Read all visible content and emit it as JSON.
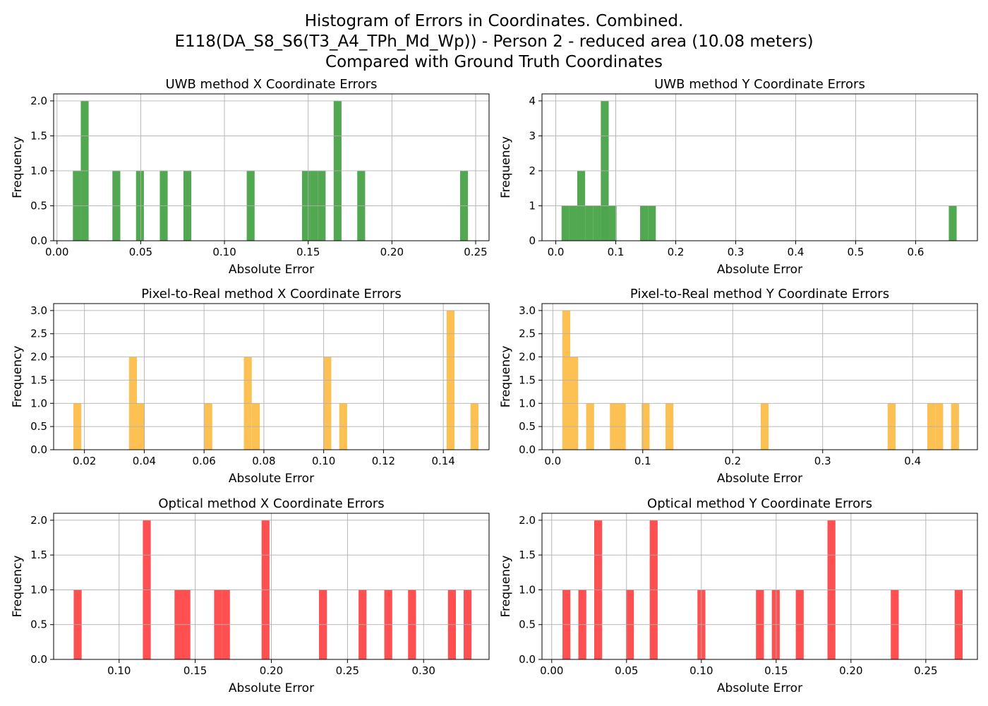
{
  "title_lines": [
    "Histogram of Errors in Coordinates. Combined.",
    "E118(DA_S8_S6(T3_A4_TPh_Md_Wp)) - Person 2 - reduced area (10.08 meters)",
    "Compared with Ground Truth Coordinates"
  ],
  "colors": {
    "uwb": "#4ea64e",
    "pixel": "#fdbf4f",
    "optical": "#fe4c4c"
  },
  "chart_data": [
    {
      "type": "bar",
      "title": "UWB method X Coordinate Errors",
      "xlabel": "Absolute Error",
      "ylabel": "Frequency",
      "color": "uwb",
      "xlim": [
        -0.002,
        0.258
      ],
      "ylim": [
        0,
        2.1
      ],
      "xticks": [
        0.0,
        0.05,
        0.1,
        0.15,
        0.2,
        0.25
      ],
      "xtick_labels": [
        "0.00",
        "0.05",
        "0.10",
        "0.15",
        "0.20",
        "0.25"
      ],
      "yticks": [
        0.0,
        0.5,
        1.0,
        1.5,
        2.0
      ],
      "ytick_labels": [
        "0.0",
        "0.5",
        "1.0",
        "1.5",
        "2.0"
      ],
      "bin_width": 0.0047,
      "bins": [
        {
          "x": 0.0095,
          "count": 1
        },
        {
          "x": 0.0142,
          "count": 2
        },
        {
          "x": 0.0331,
          "count": 1
        },
        {
          "x": 0.0472,
          "count": 1
        },
        {
          "x": 0.0614,
          "count": 1
        },
        {
          "x": 0.0755,
          "count": 1
        },
        {
          "x": 0.1133,
          "count": 1
        },
        {
          "x": 0.1463,
          "count": 1
        },
        {
          "x": 0.151,
          "count": 1
        },
        {
          "x": 0.1557,
          "count": 1
        },
        {
          "x": 0.1652,
          "count": 2
        },
        {
          "x": 0.1793,
          "count": 1
        },
        {
          "x": 0.2407,
          "count": 1
        }
      ]
    },
    {
      "type": "bar",
      "title": "UWB method Y Coordinate Errors",
      "xlabel": "Absolute Error",
      "ylabel": "Frequency",
      "color": "uwb",
      "xlim": [
        -0.023,
        0.703
      ],
      "ylim": [
        0,
        4.2
      ],
      "xticks": [
        0.0,
        0.1,
        0.2,
        0.3,
        0.4,
        0.5,
        0.6
      ],
      "xtick_labels": [
        "0.0",
        "0.1",
        "0.2",
        "0.3",
        "0.4",
        "0.5",
        "0.6"
      ],
      "yticks": [
        0,
        1,
        2,
        3,
        4
      ],
      "ytick_labels": [
        "0",
        "1",
        "2",
        "3",
        "4"
      ],
      "bin_width": 0.0131,
      "bins": [
        {
          "x": 0.0096,
          "count": 1
        },
        {
          "x": 0.0227,
          "count": 1
        },
        {
          "x": 0.0358,
          "count": 2
        },
        {
          "x": 0.0489,
          "count": 1
        },
        {
          "x": 0.062,
          "count": 1
        },
        {
          "x": 0.0751,
          "count": 1
        },
        {
          "x": 0.0751,
          "count": 4
        },
        {
          "x": 0.0882,
          "count": 1
        },
        {
          "x": 0.1406,
          "count": 1
        },
        {
          "x": 0.1537,
          "count": 1
        },
        {
          "x": 0.6553,
          "count": 1
        }
      ]
    },
    {
      "type": "bar",
      "title": "Pixel-to-Real method X Coordinate Errors",
      "xlabel": "Absolute Error",
      "ylabel": "Frequency",
      "color": "pixel",
      "xlim": [
        0.0097,
        0.1553
      ],
      "ylim": [
        0,
        3.15
      ],
      "xticks": [
        0.02,
        0.04,
        0.06,
        0.08,
        0.1,
        0.12,
        0.14
      ],
      "xtick_labels": [
        "0.02",
        "0.04",
        "0.06",
        "0.08",
        "0.10",
        "0.12",
        "0.14"
      ],
      "yticks": [
        0.0,
        0.5,
        1.0,
        1.5,
        2.0,
        2.5,
        3.0
      ],
      "ytick_labels": [
        "0.0",
        "0.5",
        "1.0",
        "1.5",
        "2.0",
        "2.5",
        "3.0"
      ],
      "bin_width": 0.00265,
      "bins": [
        {
          "x": 0.0163,
          "count": 1
        },
        {
          "x": 0.0349,
          "count": 2
        },
        {
          "x": 0.0375,
          "count": 1
        },
        {
          "x": 0.0601,
          "count": 1
        },
        {
          "x": 0.0733,
          "count": 2
        },
        {
          "x": 0.076,
          "count": 1
        },
        {
          "x": 0.0999,
          "count": 2
        },
        {
          "x": 0.1052,
          "count": 1
        },
        {
          "x": 0.1411,
          "count": 3
        },
        {
          "x": 0.1491,
          "count": 1
        }
      ]
    },
    {
      "type": "bar",
      "title": "Pixel-to-Real method Y Coordinate Errors",
      "xlabel": "Absolute Error",
      "ylabel": "Frequency",
      "color": "pixel",
      "xlim": [
        -0.012,
        0.472
      ],
      "ylim": [
        0,
        3.15
      ],
      "xticks": [
        0.0,
        0.1,
        0.2,
        0.3,
        0.4
      ],
      "xtick_labels": [
        "0.0",
        "0.1",
        "0.2",
        "0.3",
        "0.4"
      ],
      "yticks": [
        0.0,
        0.5,
        1.0,
        1.5,
        2.0,
        2.5,
        3.0
      ],
      "ytick_labels": [
        "0.0",
        "0.5",
        "1.0",
        "1.5",
        "2.0",
        "2.5",
        "3.0"
      ],
      "bin_width": 0.0088,
      "bins": [
        {
          "x": 0.0106,
          "count": 3
        },
        {
          "x": 0.0194,
          "count": 2
        },
        {
          "x": 0.0371,
          "count": 1
        },
        {
          "x": 0.0635,
          "count": 1
        },
        {
          "x": 0.0723,
          "count": 1
        },
        {
          "x": 0.0988,
          "count": 1
        },
        {
          "x": 0.1253,
          "count": 1
        },
        {
          "x": 0.2311,
          "count": 1
        },
        {
          "x": 0.3722,
          "count": 1
        },
        {
          "x": 0.4163,
          "count": 1
        },
        {
          "x": 0.4251,
          "count": 1
        },
        {
          "x": 0.4427,
          "count": 1
        }
      ]
    },
    {
      "type": "bar",
      "title": "Optical method X Coordinate Errors",
      "xlabel": "Absolute Error",
      "ylabel": "Frequency",
      "color": "optical",
      "xlim": [
        0.057,
        0.343
      ],
      "ylim": [
        0,
        2.1
      ],
      "xticks": [
        0.1,
        0.15,
        0.2,
        0.25,
        0.3
      ],
      "xtick_labels": [
        "0.10",
        "0.15",
        "0.20",
        "0.25",
        "0.30"
      ],
      "yticks": [
        0.0,
        0.5,
        1.0,
        1.5,
        2.0
      ],
      "ytick_labels": [
        "0.0",
        "0.5",
        "1.0",
        "1.5",
        "2.0"
      ],
      "bin_width": 0.0052,
      "bins": [
        {
          "x": 0.0702,
          "count": 1
        },
        {
          "x": 0.1156,
          "count": 2
        },
        {
          "x": 0.1364,
          "count": 1
        },
        {
          "x": 0.1416,
          "count": 1
        },
        {
          "x": 0.1624,
          "count": 1
        },
        {
          "x": 0.1676,
          "count": 1
        },
        {
          "x": 0.1936,
          "count": 2
        },
        {
          "x": 0.2313,
          "count": 1
        },
        {
          "x": 0.2573,
          "count": 1
        },
        {
          "x": 0.2742,
          "count": 1
        },
        {
          "x": 0.2898,
          "count": 1
        },
        {
          "x": 0.316,
          "count": 1
        },
        {
          "x": 0.3263,
          "count": 1
        }
      ]
    },
    {
      "type": "bar",
      "title": "Optical method Y Coordinate Errors",
      "xlabel": "Absolute Error",
      "ylabel": "Frequency",
      "color": "optical",
      "xlim": [
        -0.0065,
        0.2845
      ],
      "ylim": [
        0,
        2.1
      ],
      "xticks": [
        0.0,
        0.05,
        0.1,
        0.15,
        0.2,
        0.25
      ],
      "xtick_labels": [
        "0.00",
        "0.05",
        "0.10",
        "0.15",
        "0.20",
        "0.25"
      ],
      "yticks": [
        0.0,
        0.5,
        1.0,
        1.5,
        2.0
      ],
      "ytick_labels": [
        "0.0",
        "0.5",
        "1.0",
        "1.5",
        "2.0"
      ],
      "bin_width": 0.0053,
      "bins": [
        {
          "x": 0.0072,
          "count": 1
        },
        {
          "x": 0.0178,
          "count": 1
        },
        {
          "x": 0.0284,
          "count": 2
        },
        {
          "x": 0.0496,
          "count": 1
        },
        {
          "x": 0.0655,
          "count": 2
        },
        {
          "x": 0.0974,
          "count": 1
        },
        {
          "x": 0.1365,
          "count": 1
        },
        {
          "x": 0.1471,
          "count": 1
        },
        {
          "x": 0.1631,
          "count": 1
        },
        {
          "x": 0.1843,
          "count": 2
        },
        {
          "x": 0.2266,
          "count": 1
        },
        {
          "x": 0.2693,
          "count": 1
        }
      ]
    }
  ]
}
